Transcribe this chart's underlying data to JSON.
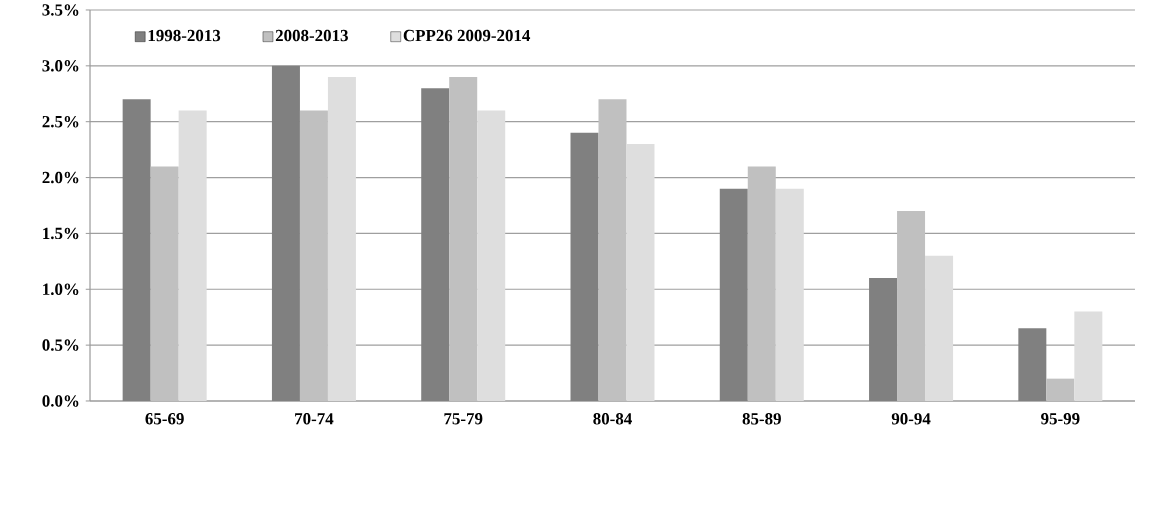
{
  "chart_data": {
    "type": "bar",
    "categories": [
      "65-69",
      "70-74",
      "75-79",
      "80-84",
      "85-89",
      "90-94",
      "95-99"
    ],
    "series": [
      {
        "name": "1998-2013",
        "color": "#808080",
        "values": [
          2.7,
          3.0,
          2.8,
          2.4,
          1.9,
          1.1,
          0.65
        ]
      },
      {
        "name": "2008-2013",
        "color": "#c0c0c0",
        "values": [
          2.1,
          2.6,
          2.9,
          2.7,
          2.1,
          1.7,
          0.2
        ]
      },
      {
        "name": "CPP26 2009-2014",
        "color": "#dedede",
        "values": [
          2.6,
          2.9,
          2.6,
          2.3,
          1.9,
          1.3,
          0.8
        ]
      }
    ],
    "ylim": [
      0,
      3.5
    ],
    "yticks": [
      {
        "value": 0,
        "label": "0.0%"
      },
      {
        "value": 0.5,
        "label": "0.5%"
      },
      {
        "value": 1,
        "label": "1.0%"
      },
      {
        "value": 1.5,
        "label": "1.5%"
      },
      {
        "value": 2,
        "label": "2.0%"
      },
      {
        "value": 2.5,
        "label": "2.5%"
      },
      {
        "value": 3,
        "label": "3.0%"
      },
      {
        "value": 3.5,
        "label": "3.5%"
      }
    ],
    "grid": "y",
    "legend": "top left"
  }
}
